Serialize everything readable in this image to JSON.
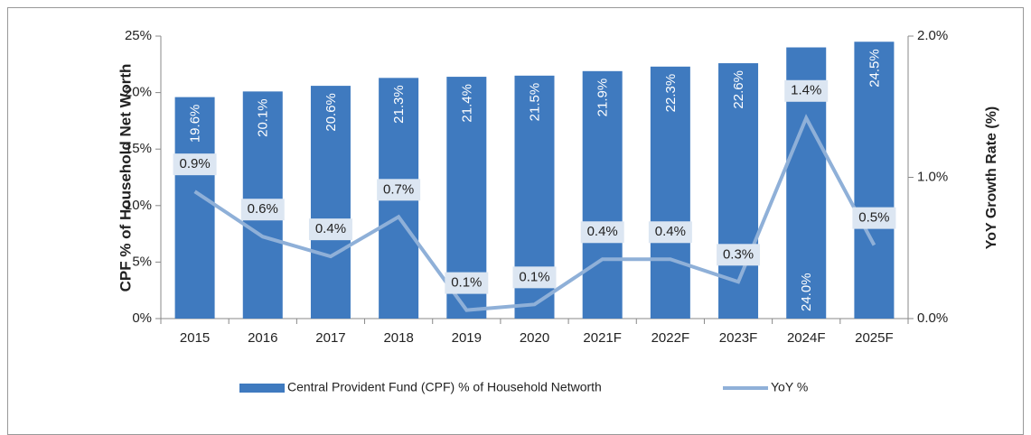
{
  "chart_data": {
    "type": "bar_line",
    "categories": [
      "2015",
      "2016",
      "2017",
      "2018",
      "2019",
      "2020",
      "2021F",
      "2022F",
      "2023F",
      "2024F",
      "2025F"
    ],
    "series": [
      {
        "name": "Central  Provident Fund (CPF) % of Household Networth",
        "color": "#3f7abf",
        "type": "bar",
        "values": [
          19.6,
          20.1,
          20.6,
          21.3,
          21.4,
          21.5,
          21.9,
          22.3,
          22.6,
          24.0,
          24.5
        ],
        "value_labels": [
          "19.6%",
          "20.1%",
          "20.6%",
          "21.3%",
          "21.4%",
          "21.5%",
          "21.9%",
          "22.3%",
          "22.6%",
          "24.0%",
          "24.5%"
        ]
      },
      {
        "name": "YoY %",
        "color": "#8fb0d8",
        "type": "line",
        "axis": "y2",
        "values": [
          0.9,
          0.58,
          0.44,
          0.72,
          0.06,
          0.1,
          0.42,
          0.42,
          0.26,
          1.42,
          0.52
        ],
        "value_labels": [
          "0.9%",
          "0.6%",
          "0.4%",
          "0.7%",
          "0.1%",
          "0.1%",
          "0.4%",
          "0.4%",
          "0.3%",
          "1.4%",
          "0.5%"
        ]
      }
    ],
    "ylabel": "CPF % of Household Net Worth",
    "y2label": "YoY Growth Rate (%)",
    "ylim": [
      0,
      25
    ],
    "yticks": [
      {
        "value": 0,
        "label": "0%"
      },
      {
        "value": 5,
        "label": "5%"
      },
      {
        "value": 10,
        "label": "10%"
      },
      {
        "value": 15,
        "label": "15%"
      },
      {
        "value": 20,
        "label": "20%"
      },
      {
        "value": 25,
        "label": "25%"
      }
    ],
    "y2lim": [
      0,
      2
    ],
    "y2ticks": [
      {
        "value": 0,
        "label": "0.0%"
      },
      {
        "value": 1,
        "label": "1.0%"
      },
      {
        "value": 2,
        "label": "2.0%"
      }
    ],
    "legend": "bottom"
  }
}
